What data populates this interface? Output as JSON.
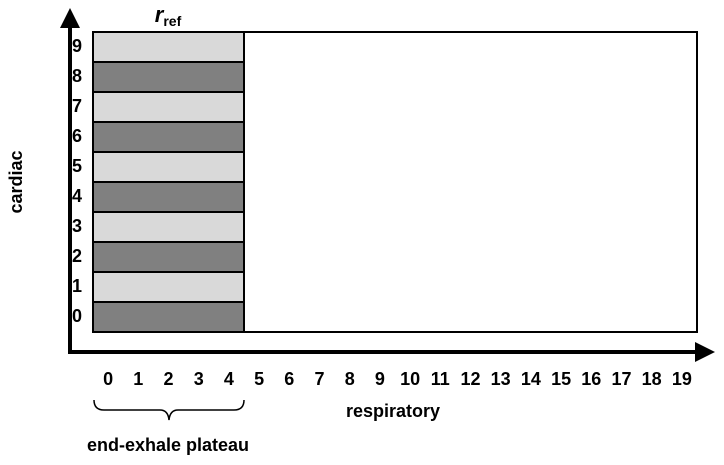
{
  "reference": {
    "symbol": "r",
    "subscript": "ref"
  },
  "y_axis": {
    "label": "cardiac",
    "ticks": [
      0,
      1,
      2,
      3,
      4,
      5,
      6,
      7,
      8,
      9
    ]
  },
  "x_axis": {
    "label": "respiratory",
    "ticks": [
      0,
      1,
      2,
      3,
      4,
      5,
      6,
      7,
      8,
      9,
      10,
      11,
      12,
      13,
      14,
      15,
      16,
      17,
      18,
      19
    ]
  },
  "plateau_label": "end-exhale plateau"
}
